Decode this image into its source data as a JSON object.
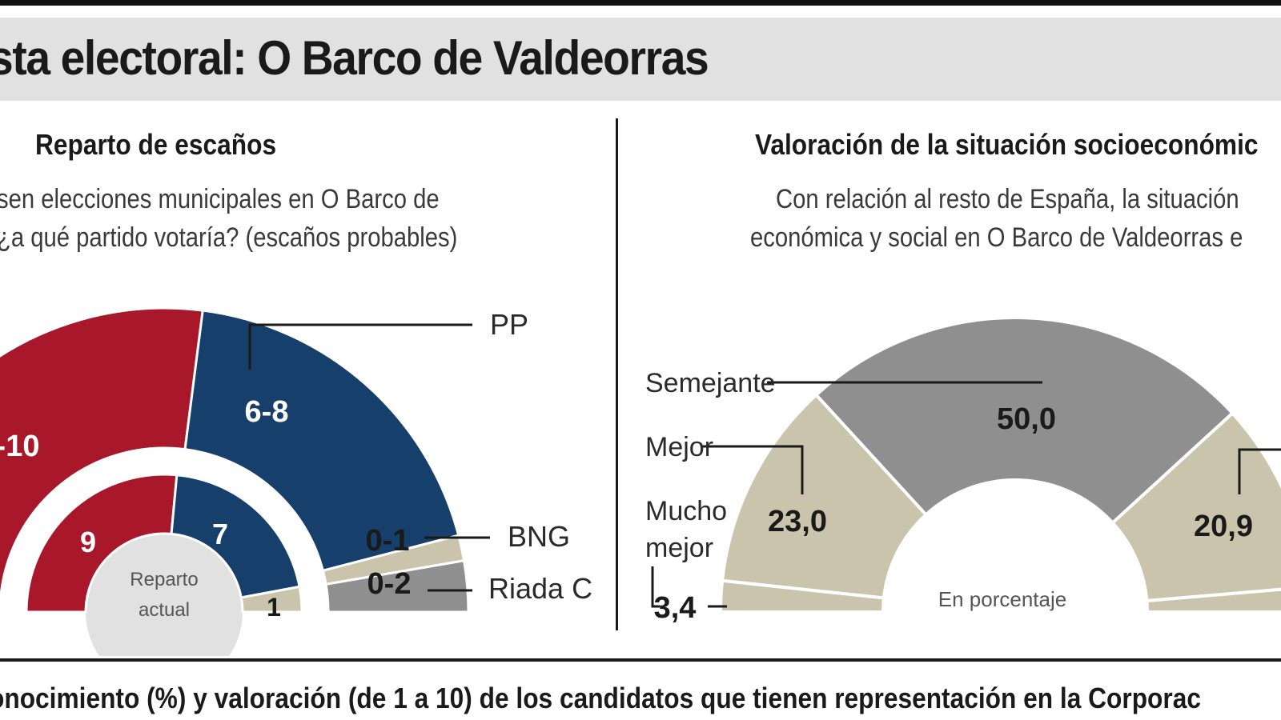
{
  "header": {
    "title": "sta electoral: O Barco de Valdeorras"
  },
  "left_panel": {
    "title": "Reparto de escaños",
    "question_line1": "sen elecciones municipales en O Barco de",
    "question_line2": "¿a qué partido votaría? (escaños probables)"
  },
  "right_panel": {
    "title": "Valoración de la situación socioeconómic",
    "question_line1": "Con relación al resto de España, la situación",
    "question_line2": "económica y social en O Barco de Valdeorras e"
  },
  "footer": {
    "heading": "onocimiento (%) y valoración (de 1 a 10) de los candidatos que tienen representación en la Corporac"
  },
  "colors": {
    "red": "#a8182a",
    "blue": "#173f6b",
    "beige": "#cbc4ad",
    "gray": "#8f8f8f",
    "panel_gray": "#e1e1e1"
  },
  "chart_data": [
    {
      "type": "pie",
      "name": "reparto-escanos",
      "outer_ring": {
        "slices": [
          {
            "label": "-10",
            "value": 10,
            "color": "red"
          },
          {
            "label": "6-8",
            "value": 7,
            "legend": "PP",
            "color": "blue"
          },
          {
            "label": "0-1",
            "value": 0.5,
            "legend": "BNG",
            "color": "beige"
          },
          {
            "label": "0-2",
            "value": 1,
            "legend": "Riada C",
            "color": "gray"
          }
        ]
      },
      "inner_ring": {
        "caption_line1": "Reparto",
        "caption_line2": "actual",
        "slices": [
          {
            "label": "9",
            "value": 9,
            "color": "red"
          },
          {
            "label": "7",
            "value": 7,
            "color": "blue"
          },
          {
            "label": "1",
            "value": 1,
            "color": "beige"
          }
        ]
      }
    },
    {
      "type": "pie",
      "name": "valoracion-situacion",
      "caption": "En porcentaje",
      "slices": [
        {
          "label": "3,4",
          "value": 3.4,
          "legend": "Mucho mejor",
          "color": "beige"
        },
        {
          "label": "23,0",
          "value": 23.0,
          "legend": "Mejor",
          "color": "beige"
        },
        {
          "label": "50,0",
          "value": 50.0,
          "legend": "Semejante",
          "color": "gray"
        },
        {
          "label": "20,9",
          "value": 20.9,
          "color": "beige"
        },
        {
          "value": 2.7,
          "color": "beige"
        }
      ],
      "legend_mucho_line1": "Mucho",
      "legend_mucho_line2": "mejor"
    }
  ]
}
